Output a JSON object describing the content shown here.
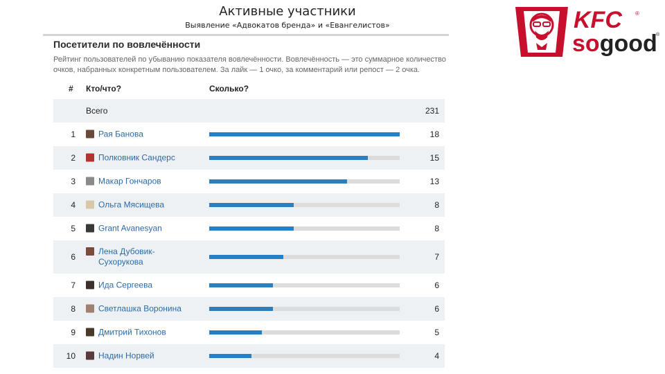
{
  "slide": {
    "title": "Активные участники",
    "subtitle": "Выявление «Адвокатов бренда» и «Евангелистов»"
  },
  "logo": {
    "brand": "KFC",
    "tagline": "sogood",
    "mark": "®"
  },
  "widget": {
    "title": "Посетители по вовлечённости",
    "description": "Рейтинг пользователей по убыванию показателя вовлечённости. Вовлечённость — это суммарное количество очков, набранных конкретным пользователем. За лайк — 1 очко, за комментарий или репост — 2 очка.",
    "columns": {
      "num": "#",
      "who": "Кто/что?",
      "how": "Сколько?"
    },
    "total": {
      "label": "Всего",
      "value": "231"
    },
    "max_value": 18,
    "rows": [
      {
        "rank": "1",
        "name": "Рая Банова",
        "value": 18,
        "avatar": "#6b4a3a"
      },
      {
        "rank": "2",
        "name": "Полковник Сандерс",
        "value": 15,
        "avatar": "#b1352f"
      },
      {
        "rank": "3",
        "name": "Макар Гончаров",
        "value": 13,
        "avatar": "#8a8a8a"
      },
      {
        "rank": "4",
        "name": "Ольга Мясищева",
        "value": 8,
        "avatar": "#d8c8a8"
      },
      {
        "rank": "5",
        "name": "Grant Avanesyan",
        "value": 8,
        "avatar": "#3a3a3a"
      },
      {
        "rank": "6",
        "name": "Лена Дубовик-Сухорукова",
        "value": 7,
        "avatar": "#7a4a3a"
      },
      {
        "rank": "7",
        "name": "Ида Сергеева",
        "value": 6,
        "avatar": "#3d2f2a"
      },
      {
        "rank": "8",
        "name": "Светлашка Воронина",
        "value": 6,
        "avatar": "#a08070"
      },
      {
        "rank": "9",
        "name": "Дмитрий Тихонов",
        "value": 5,
        "avatar": "#4a3a2a"
      },
      {
        "rank": "10",
        "name": "Надин Норвей",
        "value": 4,
        "avatar": "#5a3a3a"
      }
    ]
  },
  "colors": {
    "bar_fill": "#2a7fc0",
    "bar_track": "#dcdcdc",
    "link": "#2b6aa6",
    "brand_red": "#c8102e"
  }
}
